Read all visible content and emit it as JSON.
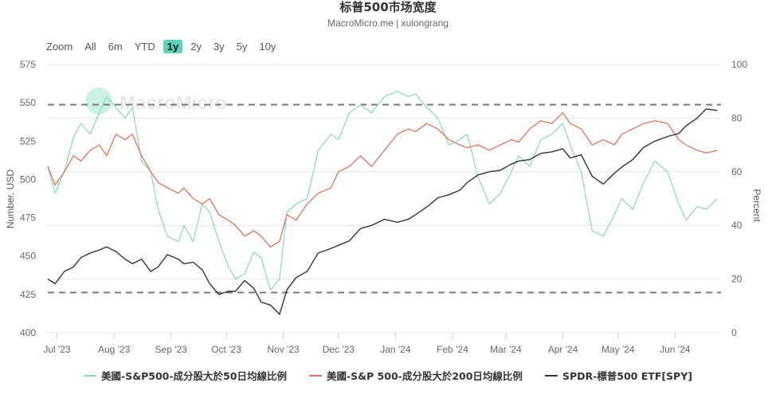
{
  "header": {
    "title": "标普500市场宽度",
    "subtitle": "MacroMicro.me | xulongrang"
  },
  "range_selector": {
    "zoom_label": "Zoom",
    "buttons": [
      "All",
      "6m",
      "YTD",
      "1y",
      "2y",
      "3y",
      "5y",
      "10y"
    ],
    "active": "1y"
  },
  "watermark": "MacroMicro",
  "colors": {
    "series_50d": "#8fd9c0",
    "series_200d": "#d9745e",
    "series_spy": "#333333",
    "grid": "#e6e6e6",
    "dashed": "#777777",
    "active_button": "#5fd3b8"
  },
  "chart_data": {
    "type": "line",
    "title": "标普500市场宽度",
    "subtitle": "MacroMicro.me | xulongrang",
    "x_tick_labels": [
      "Jul '23",
      "Aug '23",
      "Sep '23",
      "Oct '23",
      "Nov '23",
      "Dec '23",
      "Jan '24",
      "Feb '24",
      "Mar '24",
      "Apr '24",
      "May '24",
      "Jun '24"
    ],
    "left_axis": {
      "label": "Number, USD",
      "ticks": [
        575,
        550,
        525,
        500,
        475,
        450,
        425,
        400
      ],
      "range": [
        400,
        575
      ]
    },
    "right_axis": {
      "label": "Percent",
      "ticks": [
        100,
        80,
        60,
        40,
        20,
        0
      ],
      "range": [
        0,
        100
      ]
    },
    "reference_lines": [
      {
        "axis": "right",
        "value": 85,
        "style": "dashed"
      },
      {
        "axis": "right",
        "value": 15,
        "style": "dashed"
      }
    ],
    "grid": true,
    "legend_position": "bottom",
    "series": [
      {
        "name": "美國-S&P500-成分股大於50日均線比例",
        "axis": "right",
        "color": "#8fd9c0",
        "x": [
          "2023-06-26",
          "2023-06-30",
          "2023-07-05",
          "2023-07-10",
          "2023-07-14",
          "2023-07-19",
          "2023-07-24",
          "2023-07-28",
          "2023-08-02",
          "2023-08-07",
          "2023-08-11",
          "2023-08-16",
          "2023-08-21",
          "2023-08-25",
          "2023-08-30",
          "2023-09-05",
          "2023-09-08",
          "2023-09-13",
          "2023-09-18",
          "2023-09-22",
          "2023-09-27",
          "2023-10-02",
          "2023-10-06",
          "2023-10-11",
          "2023-10-16",
          "2023-10-20",
          "2023-10-25",
          "2023-10-30",
          "2023-11-03",
          "2023-11-08",
          "2023-11-14",
          "2023-11-20",
          "2023-11-27",
          "2023-12-01",
          "2023-12-07",
          "2023-12-13",
          "2023-12-19",
          "2023-12-26",
          "2024-01-02",
          "2024-01-08",
          "2024-01-12",
          "2024-01-18",
          "2024-01-24",
          "2024-01-30",
          "2024-02-05",
          "2024-02-09",
          "2024-02-15",
          "2024-02-21",
          "2024-02-27",
          "2024-03-04",
          "2024-03-08",
          "2024-03-14",
          "2024-03-20",
          "2024-03-26",
          "2024-04-01",
          "2024-04-05",
          "2024-04-11",
          "2024-04-17",
          "2024-04-23",
          "2024-04-29",
          "2024-05-03",
          "2024-05-09",
          "2024-05-15",
          "2024-05-21",
          "2024-05-28",
          "2024-06-03",
          "2024-06-07",
          "2024-06-13",
          "2024-06-18",
          "2024-06-24"
        ],
        "values": [
          62,
          52,
          60,
          73,
          78,
          74,
          82,
          88,
          84,
          80,
          84,
          64,
          60,
          46,
          36,
          34,
          40,
          34,
          48,
          45,
          34,
          25,
          20,
          22,
          30,
          28,
          16,
          20,
          45,
          48,
          50,
          68,
          74,
          72,
          82,
          85,
          82,
          88,
          90,
          88,
          89,
          84,
          80,
          70,
          72,
          74,
          58,
          48,
          52,
          60,
          66,
          62,
          72,
          74,
          78,
          70,
          60,
          38,
          36,
          44,
          50,
          46,
          56,
          64,
          60,
          48,
          42,
          47,
          46,
          50
        ]
      },
      {
        "name": "美國-S&P 500-成分股大於200日均線比例",
        "axis": "right",
        "color": "#d9745e",
        "x": [
          "2023-06-26",
          "2023-06-30",
          "2023-07-05",
          "2023-07-10",
          "2023-07-14",
          "2023-07-19",
          "2023-07-24",
          "2023-07-28",
          "2023-08-02",
          "2023-08-07",
          "2023-08-11",
          "2023-08-16",
          "2023-08-21",
          "2023-08-25",
          "2023-08-30",
          "2023-09-05",
          "2023-09-08",
          "2023-09-13",
          "2023-09-18",
          "2023-09-22",
          "2023-09-27",
          "2023-10-02",
          "2023-10-06",
          "2023-10-11",
          "2023-10-16",
          "2023-10-20",
          "2023-10-25",
          "2023-10-30",
          "2023-11-03",
          "2023-11-08",
          "2023-11-14",
          "2023-11-20",
          "2023-11-27",
          "2023-12-01",
          "2023-12-07",
          "2023-12-13",
          "2023-12-19",
          "2023-12-26",
          "2024-01-02",
          "2024-01-08",
          "2024-01-12",
          "2024-01-18",
          "2024-01-24",
          "2024-01-30",
          "2024-02-05",
          "2024-02-09",
          "2024-02-15",
          "2024-02-21",
          "2024-02-27",
          "2024-03-04",
          "2024-03-08",
          "2024-03-14",
          "2024-03-20",
          "2024-03-26",
          "2024-04-01",
          "2024-04-05",
          "2024-04-11",
          "2024-04-17",
          "2024-04-23",
          "2024-04-29",
          "2024-05-03",
          "2024-05-09",
          "2024-05-15",
          "2024-05-21",
          "2024-05-28",
          "2024-06-03",
          "2024-06-07",
          "2024-06-13",
          "2024-06-18",
          "2024-06-24"
        ],
        "values": [
          62,
          55,
          60,
          66,
          64,
          68,
          70,
          66,
          74,
          72,
          74,
          66,
          60,
          56,
          54,
          52,
          54,
          50,
          48,
          50,
          44,
          42,
          40,
          36,
          38,
          36,
          32,
          34,
          44,
          42,
          48,
          52,
          54,
          60,
          62,
          66,
          62,
          68,
          74,
          76,
          75,
          78,
          76,
          72,
          70,
          69,
          70,
          68,
          70,
          72,
          71,
          76,
          79,
          78,
          82,
          78,
          76,
          70,
          72,
          70,
          74,
          76,
          78,
          79,
          78,
          72,
          70,
          68,
          67,
          68
        ]
      },
      {
        "name": "SPDR-標普500 ETF[SPY]",
        "axis": "left",
        "color": "#333333",
        "x": [
          "2023-06-26",
          "2023-06-30",
          "2023-07-05",
          "2023-07-10",
          "2023-07-14",
          "2023-07-19",
          "2023-07-24",
          "2023-07-28",
          "2023-08-02",
          "2023-08-07",
          "2023-08-11",
          "2023-08-16",
          "2023-08-21",
          "2023-08-25",
          "2023-08-30",
          "2023-09-05",
          "2023-09-08",
          "2023-09-13",
          "2023-09-18",
          "2023-09-22",
          "2023-09-27",
          "2023-10-02",
          "2023-10-06",
          "2023-10-11",
          "2023-10-16",
          "2023-10-20",
          "2023-10-25",
          "2023-10-30",
          "2023-11-03",
          "2023-11-08",
          "2023-11-14",
          "2023-11-20",
          "2023-11-27",
          "2023-12-01",
          "2023-12-07",
          "2023-12-13",
          "2023-12-19",
          "2023-12-26",
          "2024-01-02",
          "2024-01-08",
          "2024-01-12",
          "2024-01-18",
          "2024-01-24",
          "2024-01-30",
          "2024-02-05",
          "2024-02-09",
          "2024-02-15",
          "2024-02-21",
          "2024-02-27",
          "2024-03-04",
          "2024-03-08",
          "2024-03-14",
          "2024-03-20",
          "2024-03-26",
          "2024-04-01",
          "2024-04-05",
          "2024-04-11",
          "2024-04-17",
          "2024-04-23",
          "2024-04-29",
          "2024-05-03",
          "2024-05-09",
          "2024-05-15",
          "2024-05-21",
          "2024-05-28",
          "2024-06-03",
          "2024-06-07",
          "2024-06-13",
          "2024-06-18",
          "2024-06-24"
        ],
        "values": [
          435,
          432,
          440,
          443,
          449,
          452,
          454,
          456,
          453,
          448,
          445,
          448,
          440,
          443,
          451,
          448,
          445,
          446,
          441,
          432,
          425,
          427,
          427,
          434,
          429,
          420,
          418,
          412,
          428,
          436,
          440,
          452,
          455,
          457,
          460,
          468,
          470,
          474,
          472,
          474,
          477,
          482,
          488,
          490,
          493,
          498,
          503,
          505,
          506,
          510,
          512,
          513,
          517,
          518,
          520,
          514,
          516,
          502,
          497,
          504,
          508,
          513,
          521,
          525,
          528,
          530,
          535,
          540,
          546,
          545
        ]
      }
    ]
  },
  "legend": {
    "items": [
      {
        "label": "美國-S&P500-成分股大於50日均線比例",
        "color": "#8fd9c0"
      },
      {
        "label": "美國-S&P 500-成分股大於200日均線比例",
        "color": "#d9745e"
      },
      {
        "label": "SPDR-標普500 ETF[SPY]",
        "color": "#333333"
      }
    ]
  }
}
